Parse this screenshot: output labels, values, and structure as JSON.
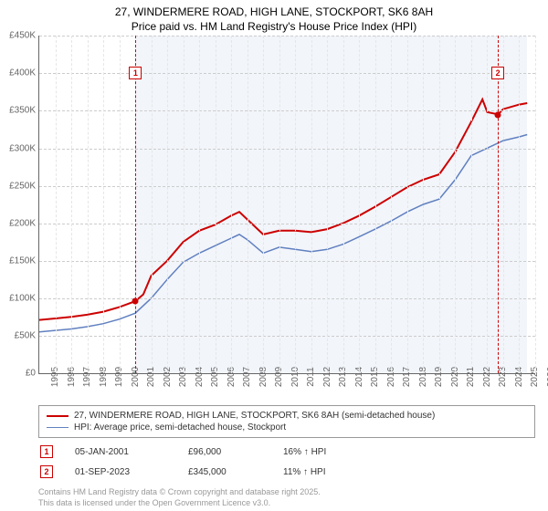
{
  "title_line1": "27, WINDERMERE ROAD, HIGH LANE, STOCKPORT, SK6 8AH",
  "title_line2": "Price paid vs. HM Land Registry's House Price Index (HPI)",
  "chart": {
    "type": "line",
    "background_color": "#ffffff",
    "shaded_background_color": "#f2f5fa",
    "grid_color": "#cccccc",
    "axis_color": "#666666",
    "label_fontsize": 10,
    "title_fontsize": 12,
    "xlim": [
      1995,
      2026
    ],
    "ylim": [
      0,
      450000
    ],
    "x_ticks": [
      1995,
      1996,
      1997,
      1998,
      1999,
      2000,
      2001,
      2002,
      2003,
      2004,
      2005,
      2006,
      2007,
      2008,
      2009,
      2010,
      2011,
      2012,
      2013,
      2014,
      2015,
      2016,
      2017,
      2018,
      2019,
      2020,
      2021,
      2022,
      2023,
      2024,
      2025,
      2026
    ],
    "y_ticks": [
      0,
      50000,
      100000,
      150000,
      200000,
      250000,
      300000,
      350000,
      400000,
      450000
    ],
    "y_tick_labels": [
      "£0",
      "£50K",
      "£100K",
      "£150K",
      "£200K",
      "£250K",
      "£300K",
      "£350K",
      "£400K",
      "£450K"
    ],
    "shaded_x_from": 2001.02,
    "shaded_x_to": 2025.5,
    "series": [
      {
        "name": "address",
        "color": "#cc0000",
        "line_width": 2,
        "x": [
          1995,
          1996,
          1997,
          1998,
          1999,
          2000,
          2001,
          2001.5,
          2002,
          2003,
          2004,
          2005,
          2006,
          2007,
          2007.5,
          2008,
          2009,
          2010,
          2011,
          2012,
          2013,
          2014,
          2015,
          2016,
          2017,
          2018,
          2019,
          2020,
          2021,
          2022,
          2022.7,
          2023,
          2023.67,
          2024,
          2025,
          2025.5
        ],
        "y": [
          71000,
          73000,
          75000,
          78000,
          82000,
          88000,
          96000,
          105000,
          130000,
          150000,
          175000,
          190000,
          198000,
          210000,
          215000,
          205000,
          185000,
          190000,
          190000,
          188000,
          192000,
          200000,
          210000,
          222000,
          235000,
          248000,
          258000,
          265000,
          295000,
          335000,
          365000,
          348000,
          345000,
          352000,
          358000,
          360000
        ]
      },
      {
        "name": "hpi",
        "color": "#6080c0",
        "line_width": 1.5,
        "x": [
          1995,
          1996,
          1997,
          1998,
          1999,
          2000,
          2001,
          2002,
          2003,
          2004,
          2005,
          2006,
          2007,
          2007.5,
          2008,
          2009,
          2010,
          2011,
          2012,
          2013,
          2014,
          2015,
          2016,
          2017,
          2018,
          2019,
          2020,
          2021,
          2022,
          2023,
          2024,
          2025,
          2025.5
        ],
        "y": [
          55000,
          57000,
          59000,
          62000,
          66000,
          72000,
          80000,
          100000,
          125000,
          148000,
          160000,
          170000,
          180000,
          185000,
          178000,
          160000,
          168000,
          165000,
          162000,
          165000,
          172000,
          182000,
          192000,
          203000,
          215000,
          225000,
          232000,
          258000,
          290000,
          300000,
          310000,
          315000,
          318000
        ]
      }
    ],
    "markers": [
      {
        "num": "1",
        "x": 2001.02,
        "y": 96000,
        "box_y": 400000
      },
      {
        "num": "2",
        "x": 2023.67,
        "y": 345000,
        "box_y": 400000
      }
    ]
  },
  "legend": {
    "items": [
      {
        "color": "#cc0000",
        "width": 2,
        "label": "27, WINDERMERE ROAD, HIGH LANE, STOCKPORT, SK6 8AH (semi-detached house)"
      },
      {
        "color": "#6080c0",
        "width": 1.5,
        "label": "HPI: Average price, semi-detached house, Stockport"
      }
    ]
  },
  "sales": [
    {
      "num": "1",
      "date": "05-JAN-2001",
      "price": "£96,000",
      "hpi": "16% ↑ HPI"
    },
    {
      "num": "2",
      "date": "01-SEP-2023",
      "price": "£345,000",
      "hpi": "11% ↑ HPI"
    }
  ],
  "footer_line1": "Contains HM Land Registry data © Crown copyright and database right 2025.",
  "footer_line2": "This data is licensed under the Open Government Licence v3.0."
}
